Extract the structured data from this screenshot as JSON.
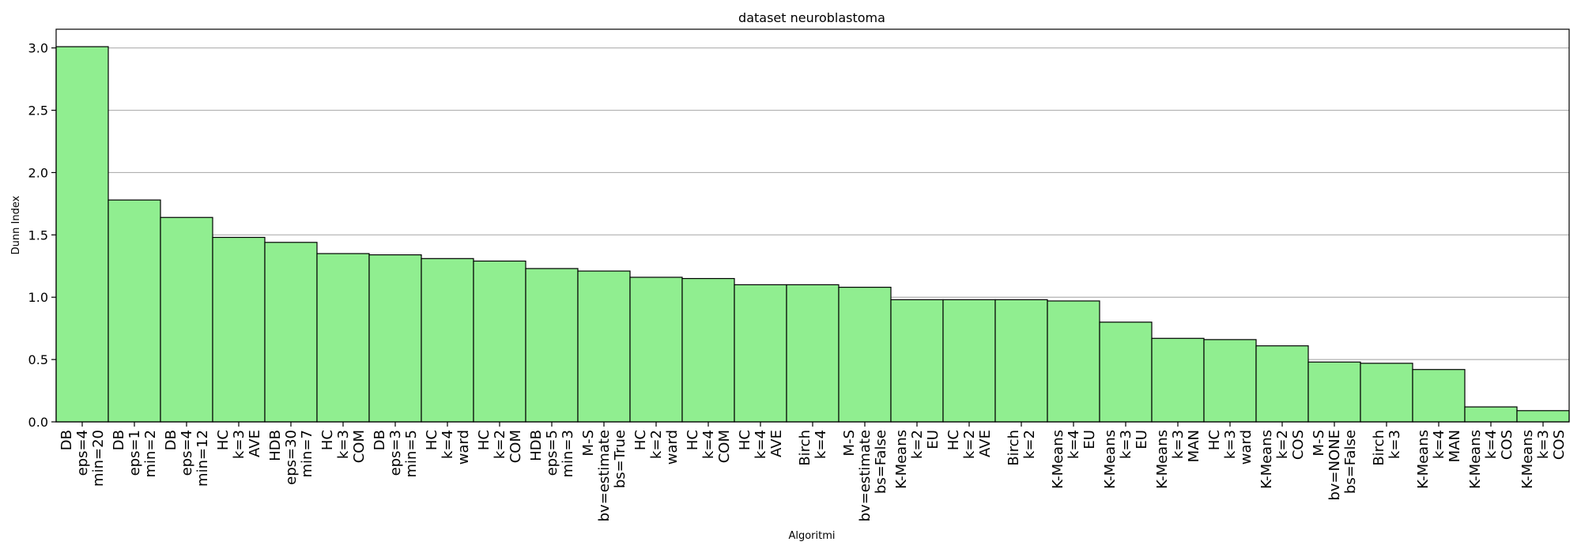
{
  "chart_data": {
    "type": "bar",
    "title": "dataset neuroblastoma",
    "xlabel": "Algoritmi",
    "ylabel": "Dunn Index",
    "ylim": [
      0,
      3.15
    ],
    "yticks": [
      "0.0",
      "0.5",
      "1.0",
      "1.5",
      "2.0",
      "2.5",
      "3.0"
    ],
    "grid": "horizontal",
    "bar_color": "#90EE90",
    "categories": [
      [
        "DB",
        "eps=4",
        "min=20"
      ],
      [
        "DB",
        "eps=1",
        "min=2"
      ],
      [
        "DB",
        "eps=4",
        "min=12"
      ],
      [
        "HC",
        "k=3",
        "AVE"
      ],
      [
        "HDB",
        "eps=30",
        "min=7"
      ],
      [
        "HC",
        "k=3",
        "COM"
      ],
      [
        "DB",
        "eps=3",
        "min=5"
      ],
      [
        "HC",
        "k=4",
        "ward"
      ],
      [
        "HC",
        "k=2",
        "COM"
      ],
      [
        "HDB",
        "eps=5",
        "min=3"
      ],
      [
        "M-S",
        "bv=estimate",
        "bs=True"
      ],
      [
        "HC",
        "k=2",
        "ward"
      ],
      [
        "HC",
        "k=4",
        "COM"
      ],
      [
        "HC",
        "k=4",
        "AVE"
      ],
      [
        "Birch",
        "k=4"
      ],
      [
        "M-S",
        "bv=estimate",
        "bs=False"
      ],
      [
        "K-Means",
        "k=2",
        "EU"
      ],
      [
        "HC",
        "k=2",
        "AVE"
      ],
      [
        "Birch",
        "k=2"
      ],
      [
        "K-Means",
        "k=4",
        "EU"
      ],
      [
        "K-Means",
        "k=3",
        "EU"
      ],
      [
        "K-Means",
        "k=3",
        "MAN"
      ],
      [
        "HC",
        "k=3",
        "ward"
      ],
      [
        "K-Means",
        "k=2",
        "COS"
      ],
      [
        "M-S",
        "bv=NONE",
        "bs=False"
      ],
      [
        "Birch",
        "k=3"
      ],
      [
        "K-Means",
        "k=4",
        "MAN"
      ],
      [
        "K-Means",
        "k=4",
        "COS"
      ],
      [
        "K-Means",
        "k=3",
        "COS"
      ]
    ],
    "values": [
      3.01,
      1.78,
      1.64,
      1.48,
      1.44,
      1.35,
      1.34,
      1.31,
      1.29,
      1.23,
      1.21,
      1.16,
      1.15,
      1.1,
      1.1,
      1.08,
      0.98,
      0.98,
      0.98,
      0.97,
      0.8,
      0.67,
      0.66,
      0.61,
      0.48,
      0.47,
      0.42,
      0.12,
      0.09
    ]
  }
}
